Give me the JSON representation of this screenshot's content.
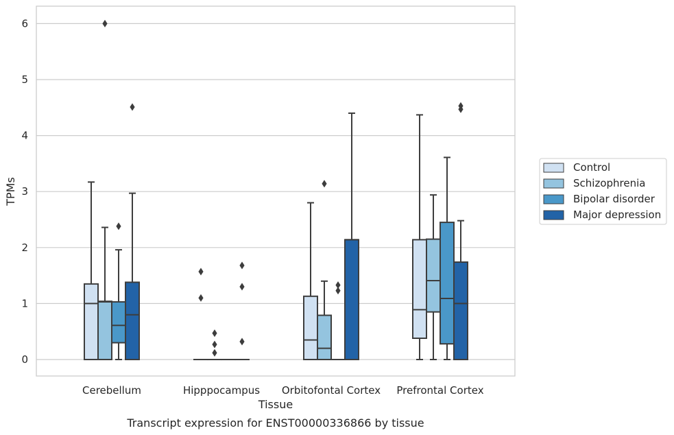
{
  "caption": "Transcript expression for ENST00000336866 by tissue",
  "chart_data": {
    "type": "box",
    "xlabel": "Tissue",
    "ylabel": "TPMs",
    "ylim": [
      -0.3,
      6.3
    ],
    "yticks": [
      0,
      1,
      2,
      3,
      4,
      5,
      6
    ],
    "grid": true,
    "legend_placement": "right",
    "categories": [
      "Cerebellum",
      "Hipppocampus",
      "Orbitofontal Cortex",
      "Prefrontal Cortex"
    ],
    "series": [
      {
        "name": "Control",
        "color": "#d0e1f2",
        "boxes": [
          {
            "q1": 0,
            "median": 1.0,
            "q3": 1.35,
            "whisker_low": 0,
            "whisker_high": 3.17,
            "outliers": []
          },
          {
            "q1": 0,
            "median": 0,
            "q3": 0,
            "whisker_low": 0,
            "whisker_high": 0,
            "outliers": [
              1.57,
              1.1
            ]
          },
          {
            "q1": 0,
            "median": 0.35,
            "q3": 1.13,
            "whisker_low": 0,
            "whisker_high": 2.8,
            "outliers": []
          },
          {
            "q1": 0.38,
            "median": 0.89,
            "q3": 2.14,
            "whisker_low": 0,
            "whisker_high": 4.37,
            "outliers": []
          }
        ]
      },
      {
        "name": "Schizophrenia",
        "color": "#94c4df",
        "boxes": [
          {
            "q1": 0,
            "median": 1.03,
            "q3": 1.04,
            "whisker_low": 0,
            "whisker_high": 2.36,
            "outliers": [
              6.0
            ]
          },
          {
            "q1": 0,
            "median": 0,
            "q3": 0,
            "whisker_low": 0,
            "whisker_high": 0,
            "outliers": [
              0.47,
              0.27,
              0.12
            ]
          },
          {
            "q1": 0,
            "median": 0.2,
            "q3": 0.79,
            "whisker_low": 0,
            "whisker_high": 1.4,
            "outliers": [
              3.14
            ]
          },
          {
            "q1": 0.85,
            "median": 1.41,
            "q3": 2.15,
            "whisker_low": 0,
            "whisker_high": 2.94,
            "outliers": []
          }
        ]
      },
      {
        "name": "Bipolar disorder",
        "color": "#4a98c9",
        "boxes": [
          {
            "q1": 0.3,
            "median": 0.61,
            "q3": 1.03,
            "whisker_low": 0,
            "whisker_high": 1.96,
            "outliers": [
              2.38
            ]
          },
          {
            "q1": 0,
            "median": 0,
            "q3": 0,
            "whisker_low": 0,
            "whisker_high": 0,
            "outliers": []
          },
          {
            "q1": 0,
            "median": 0,
            "q3": 0,
            "whisker_low": 0,
            "whisker_high": 0,
            "outliers": [
              1.33,
              1.23
            ]
          },
          {
            "q1": 0.28,
            "median": 1.09,
            "q3": 2.45,
            "whisker_low": 0,
            "whisker_high": 3.61,
            "outliers": []
          }
        ]
      },
      {
        "name": "Major depression",
        "color": "#2263a7",
        "boxes": [
          {
            "q1": 0,
            "median": 0.8,
            "q3": 1.38,
            "whisker_low": 0,
            "whisker_high": 2.97,
            "outliers": [
              4.51
            ]
          },
          {
            "q1": 0,
            "median": 0,
            "q3": 0,
            "whisker_low": 0,
            "whisker_high": 0,
            "outliers": [
              1.68,
              1.3,
              0.32
            ]
          },
          {
            "q1": 0,
            "median": 2.14,
            "q3": 2.14,
            "whisker_low": 0,
            "whisker_high": 4.4,
            "outliers": []
          },
          {
            "q1": 0,
            "median": 1.0,
            "q3": 1.74,
            "whisker_low": 0,
            "whisker_high": 2.48,
            "outliers": [
              4.53,
              4.47
            ]
          }
        ]
      }
    ]
  }
}
